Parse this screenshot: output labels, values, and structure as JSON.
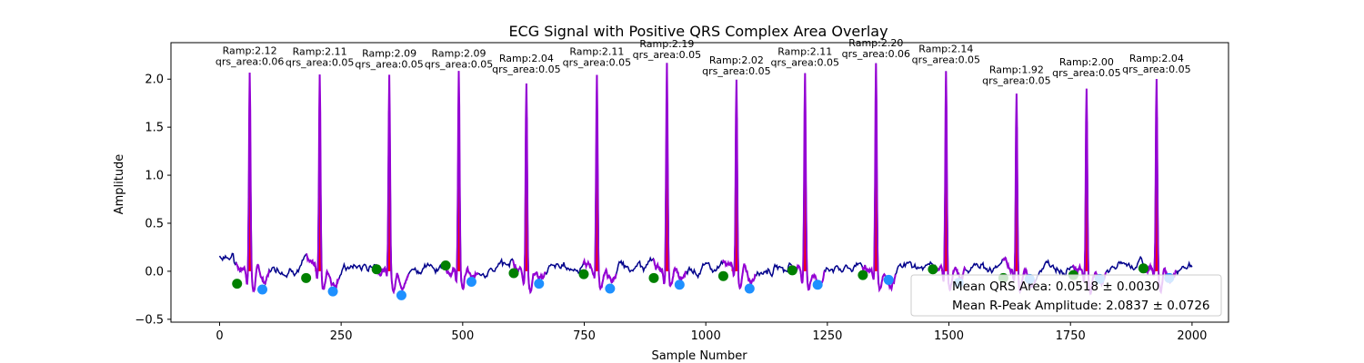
{
  "chart_data": {
    "type": "line",
    "title": "ECG Signal with Positive QRS Complex Area Overlay",
    "xlabel": "Sample Number",
    "ylabel": "Amplitude",
    "xlim": [
      -100,
      2075
    ],
    "ylim": [
      -0.53,
      2.38
    ],
    "xticks": [
      0,
      250,
      500,
      750,
      1000,
      1250,
      1500,
      1750,
      2000
    ],
    "yticks": [
      -0.5,
      0.0,
      0.5,
      1.0,
      1.5,
      2.0
    ],
    "grid": false,
    "legend_position": "lower-right",
    "colors": {
      "signal": "#00008b",
      "qrs_segment": "#9400d3",
      "qrs_area_fill": "#ff0000",
      "q_points": "#1e90ff",
      "s_points": "#008000",
      "t_points": "#1e90ff"
    },
    "beats": [
      {
        "r_x": 62,
        "r_amp": 2.12,
        "r_label": "Ramp:2.12",
        "qrs_label": "qrs_area:0.06",
        "q_x": 36,
        "q_y": -0.13,
        "t_x": 88,
        "t_y": -0.19
      },
      {
        "r_x": 206,
        "r_amp": 2.11,
        "r_label": "Ramp:2.11",
        "qrs_label": "qrs_area:0.05",
        "q_x": 178,
        "q_y": -0.07,
        "t_x": 233,
        "t_y": -0.21
      },
      {
        "r_x": 349,
        "r_amp": 2.09,
        "r_label": "Ramp:2.09",
        "qrs_label": "qrs_area:0.05",
        "q_x": 323,
        "q_y": 0.02,
        "t_x": 374,
        "t_y": -0.25
      },
      {
        "r_x": 492,
        "r_amp": 2.09,
        "r_label": "Ramp:2.09",
        "qrs_label": "qrs_area:0.05",
        "q_x": 465,
        "q_y": 0.06,
        "t_x": 518,
        "t_y": -0.11
      },
      {
        "r_x": 631,
        "r_amp": 2.04,
        "r_label": "Ramp:2.04",
        "qrs_label": "qrs_area:0.05",
        "q_x": 605,
        "q_y": -0.02,
        "t_x": 657,
        "t_y": -0.13
      },
      {
        "r_x": 776,
        "r_amp": 2.11,
        "r_label": "Ramp:2.11",
        "qrs_label": "qrs_area:0.05",
        "q_x": 749,
        "q_y": -0.03,
        "t_x": 803,
        "t_y": -0.18
      },
      {
        "r_x": 920,
        "r_amp": 2.19,
        "r_label": "Ramp:2.19",
        "qrs_label": "qrs_area:0.05",
        "q_x": 893,
        "q_y": -0.07,
        "t_x": 946,
        "t_y": -0.14
      },
      {
        "r_x": 1063,
        "r_amp": 2.02,
        "r_label": "Ramp:2.02",
        "qrs_label": "qrs_area:0.05",
        "q_x": 1036,
        "q_y": -0.05,
        "t_x": 1090,
        "t_y": -0.18
      },
      {
        "r_x": 1204,
        "r_amp": 2.11,
        "r_label": "Ramp:2.11",
        "qrs_label": "qrs_area:0.05",
        "q_x": 1178,
        "q_y": 0.01,
        "t_x": 1230,
        "t_y": -0.14
      },
      {
        "r_x": 1350,
        "r_amp": 2.2,
        "r_label": "Ramp:2.20",
        "qrs_label": "qrs_area:0.06",
        "q_x": 1323,
        "q_y": -0.04,
        "t_x": 1376,
        "t_y": -0.09
      },
      {
        "r_x": 1494,
        "r_amp": 2.14,
        "r_label": "Ramp:2.14",
        "qrs_label": "qrs_area:0.05",
        "q_x": 1467,
        "q_y": 0.02,
        "t_x": 1520,
        "t_y": -0.12
      },
      {
        "r_x": 1639,
        "r_amp": 1.92,
        "r_label": "Ramp:1.92",
        "qrs_label": "qrs_area:0.05",
        "q_x": 1612,
        "q_y": -0.07,
        "t_x": 1666,
        "t_y": -0.08
      },
      {
        "r_x": 1783,
        "r_amp": 2.0,
        "r_label": "Ramp:2.00",
        "qrs_label": "qrs_area:0.05",
        "q_x": 1756,
        "q_y": -0.04,
        "t_x": 1810,
        "t_y": -0.08
      },
      {
        "r_x": 1927,
        "r_amp": 2.04,
        "r_label": "Ramp:2.04",
        "qrs_label": "qrs_area:0.05",
        "q_x": 1900,
        "q_y": 0.03,
        "t_x": 1953,
        "t_y": -0.07
      }
    ],
    "legend": {
      "line1": "Mean QRS Area: 0.0518 ± 0.0030",
      "line2": "Mean R-Peak Amplitude: 2.0837 ± 0.0726"
    }
  }
}
